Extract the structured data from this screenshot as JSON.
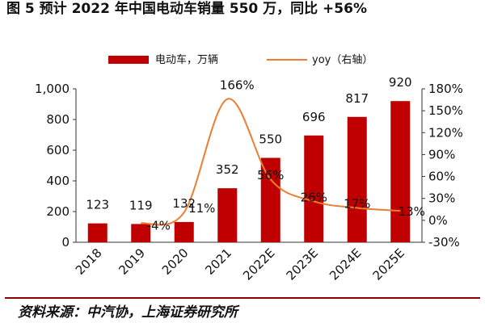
{
  "figure": {
    "title": "图 5 预计 2022 年中国电动车销量 550 万，同比 +56%",
    "source": "资料来源：中汽协，上海证券研究所"
  },
  "colors": {
    "bar": "#c00000",
    "line": "#ed7d31"
  },
  "chart_data": {
    "type": "bar",
    "categories": [
      "2018",
      "2019",
      "2020",
      "2021",
      "2022E",
      "2023E",
      "2024E",
      "2025E"
    ],
    "series": [
      {
        "name": "电动车，万辆",
        "type": "bar",
        "axis": "left",
        "values": [
          123,
          119,
          132,
          352,
          550,
          696,
          817,
          920
        ],
        "labels": [
          "123",
          "119",
          "132",
          "352",
          "550",
          "696",
          "817",
          "920"
        ]
      },
      {
        "name": "yoy（右轴）",
        "type": "line",
        "axis": "right",
        "values": [
          null,
          -4,
          11,
          166,
          56,
          26,
          17,
          13
        ],
        "labels": [
          "",
          "-4%",
          "11%",
          "166%",
          "56%",
          "26%",
          "17%",
          "13%"
        ]
      }
    ],
    "y_left": {
      "range": [
        0,
        1000
      ],
      "ticks": [
        0,
        200,
        400,
        600,
        800,
        1000
      ],
      "tick_labels": [
        "0",
        "200",
        "400",
        "600",
        "800",
        "1,000"
      ]
    },
    "y_right": {
      "range": [
        -30,
        180
      ],
      "ticks": [
        -30,
        0,
        30,
        60,
        90,
        120,
        150,
        180
      ],
      "tick_labels": [
        "-30%",
        "0%",
        "30%",
        "60%",
        "90%",
        "120%",
        "150%",
        "180%"
      ]
    },
    "legend_position": "top",
    "grid": false
  }
}
